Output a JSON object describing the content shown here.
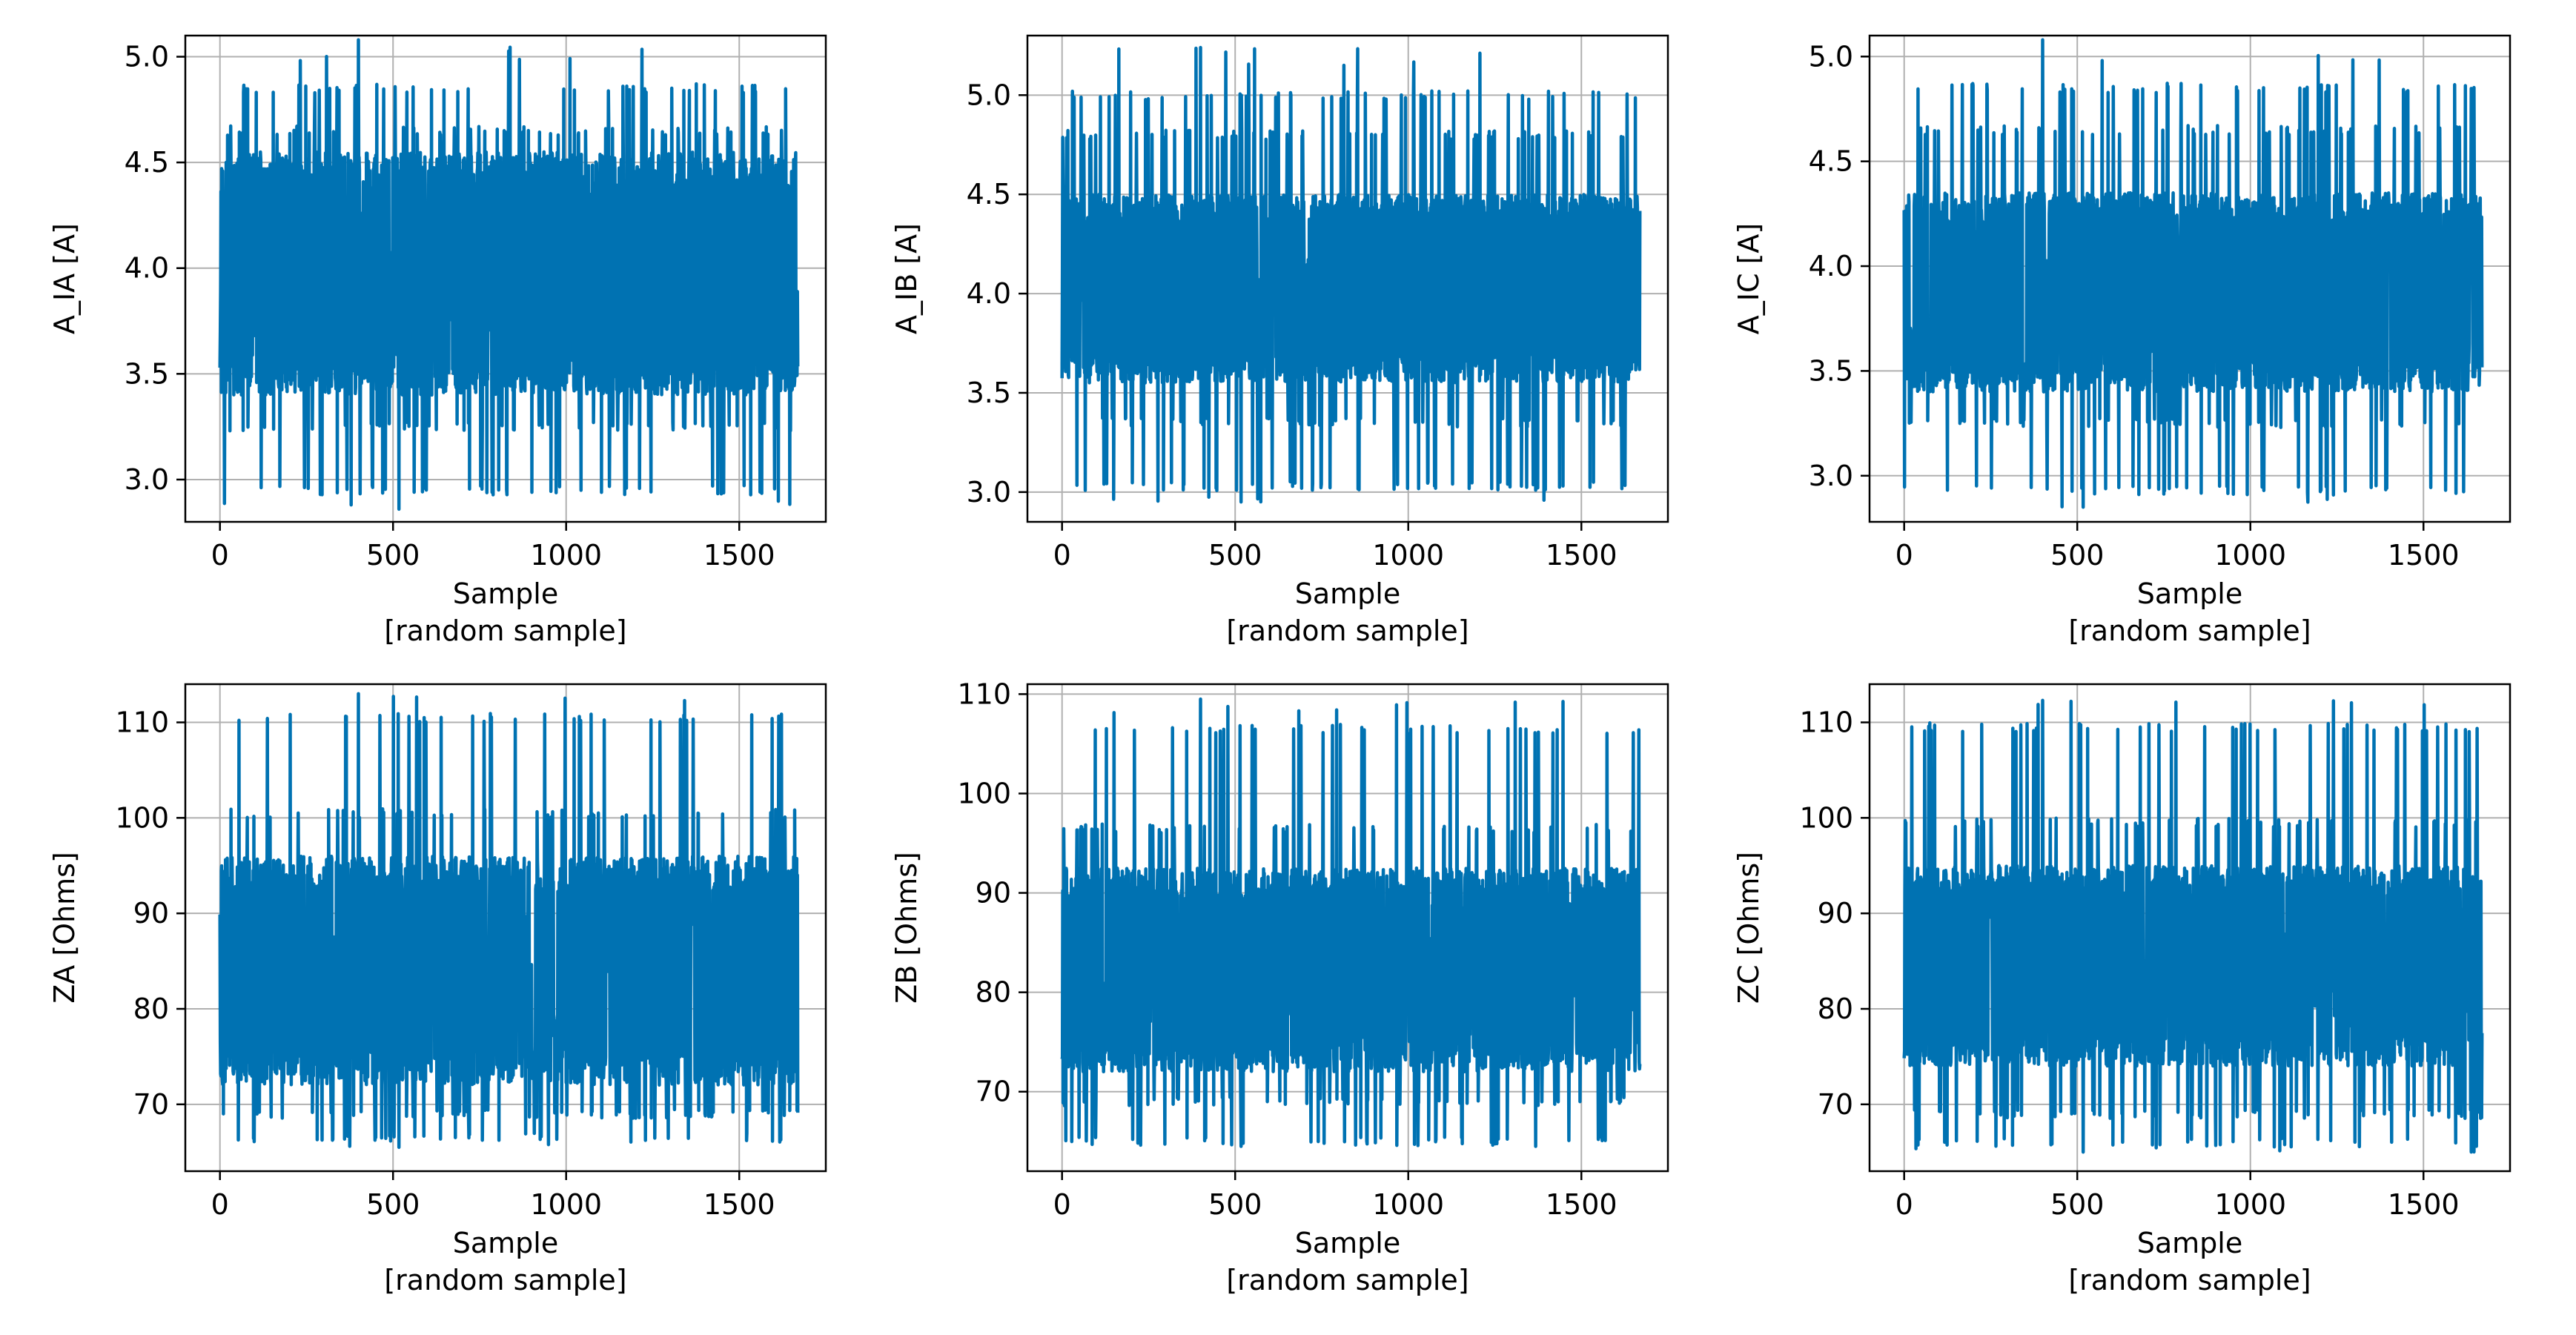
{
  "figure": {
    "accent_color": "#0072b2",
    "grid_color": "#b0b0b0"
  },
  "chart_data": [
    {
      "type": "line",
      "xlabel": "Sample",
      "xlabel_sub": "[random sample]",
      "ylabel": "A_IA [A]",
      "xlim": [
        -100,
        1750
      ],
      "ylim": [
        2.8,
        5.1
      ],
      "xticks": [
        0,
        500,
        1000,
        1500
      ],
      "yticks": [
        3.0,
        3.5,
        4.0,
        4.5,
        5.0
      ],
      "ytick_labels": [
        "3.0",
        "3.5",
        "4.0",
        "4.5",
        "5.0"
      ],
      "grid": true,
      "n_samples": 1670,
      "series": [
        {
          "name": "A_IA",
          "band_low": 3.4,
          "band_high": 4.55,
          "max": 5.08,
          "min": 2.86,
          "upper_steps": [
            4.65,
            4.85
          ],
          "lower_steps": [
            3.25,
            2.95
          ]
        }
      ]
    },
    {
      "type": "line",
      "xlabel": "Sample",
      "xlabel_sub": "[random sample]",
      "ylabel": "A_IB [A]",
      "xlim": [
        -100,
        1750
      ],
      "ylim": [
        2.85,
        5.3
      ],
      "xticks": [
        0,
        500,
        1000,
        1500
      ],
      "yticks": [
        3.0,
        3.5,
        4.0,
        4.5,
        5.0
      ],
      "ytick_labels": [
        "3.0",
        "3.5",
        "4.0",
        "4.5",
        "5.0"
      ],
      "grid": true,
      "n_samples": 1670,
      "series": [
        {
          "name": "A_IB",
          "band_low": 3.55,
          "band_high": 4.5,
          "max": 5.24,
          "min": 2.95,
          "upper_steps": [
            4.8,
            5.0
          ],
          "lower_steps": [
            3.35,
            3.03
          ]
        }
      ]
    },
    {
      "type": "line",
      "xlabel": "Sample",
      "xlabel_sub": "[random sample]",
      "ylabel": "A_IC [A]",
      "xlim": [
        -100,
        1750
      ],
      "ylim": [
        2.78,
        5.1
      ],
      "xticks": [
        0,
        500,
        1000,
        1500
      ],
      "yticks": [
        3.0,
        3.5,
        4.0,
        4.5,
        5.0
      ],
      "ytick_labels": [
        "3.0",
        "3.5",
        "4.0",
        "4.5",
        "5.0"
      ],
      "grid": true,
      "n_samples": 1670,
      "series": [
        {
          "name": "A_IC",
          "band_low": 3.4,
          "band_high": 4.35,
          "max": 5.08,
          "min": 2.85,
          "upper_steps": [
            4.65,
            4.85
          ],
          "lower_steps": [
            3.25,
            2.93
          ]
        }
      ]
    },
    {
      "type": "line",
      "xlabel": "Sample",
      "xlabel_sub": "[random sample]",
      "ylabel": "ZA [Ohms]",
      "xlim": [
        -100,
        1750
      ],
      "ylim": [
        63,
        114
      ],
      "xticks": [
        0,
        500,
        1000,
        1500
      ],
      "yticks": [
        70,
        80,
        90,
        100,
        110
      ],
      "ytick_labels": [
        "70",
        "80",
        "90",
        "100",
        "110"
      ],
      "grid": true,
      "n_samples": 1670,
      "series": [
        {
          "name": "ZA",
          "band_low": 72,
          "band_high": 96,
          "max": 113,
          "min": 65.5,
          "upper_steps": [
            100.5,
            110.5
          ],
          "lower_steps": [
            69,
            66.5
          ]
        }
      ]
    },
    {
      "type": "line",
      "xlabel": "Sample",
      "xlabel_sub": "[random sample]",
      "ylabel": "ZB [Ohms]",
      "xlim": [
        -100,
        1750
      ],
      "ylim": [
        62,
        111
      ],
      "xticks": [
        0,
        500,
        1000,
        1500
      ],
      "yticks": [
        70,
        80,
        90,
        100,
        110
      ],
      "ytick_labels": [
        "70",
        "80",
        "90",
        "100",
        "110"
      ],
      "grid": true,
      "n_samples": 1670,
      "series": [
        {
          "name": "ZB",
          "band_low": 72,
          "band_high": 92.5,
          "max": 109.5,
          "min": 64.5,
          "upper_steps": [
            96.5,
            106.5
          ],
          "lower_steps": [
            69,
            65
          ]
        }
      ]
    },
    {
      "type": "line",
      "xlabel": "Sample",
      "xlabel_sub": "[random sample]",
      "ylabel": "ZC [Ohms]",
      "xlim": [
        -100,
        1750
      ],
      "ylim": [
        63,
        114
      ],
      "xticks": [
        0,
        500,
        1000,
        1500
      ],
      "yticks": [
        70,
        80,
        90,
        100,
        110
      ],
      "ytick_labels": [
        "70",
        "80",
        "90",
        "100",
        "110"
      ],
      "grid": true,
      "n_samples": 1670,
      "series": [
        {
          "name": "ZC",
          "band_low": 74,
          "band_high": 95,
          "max": 112.3,
          "min": 65,
          "upper_steps": [
            99.5,
            109.5
          ],
          "lower_steps": [
            69,
            66
          ]
        }
      ]
    }
  ]
}
